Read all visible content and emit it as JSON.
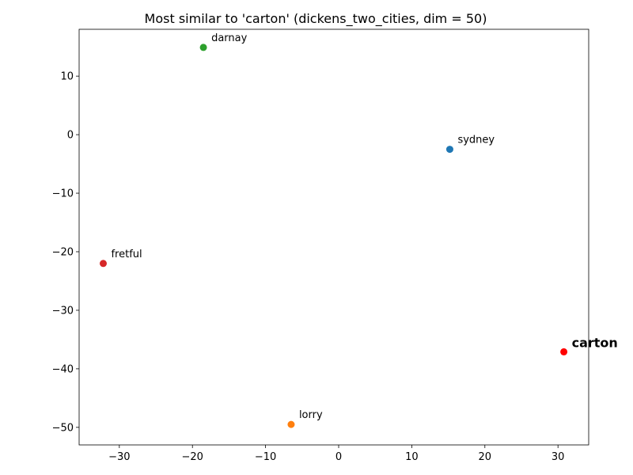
{
  "chart_data": {
    "type": "scatter",
    "title": "Most similar to 'carton' (dickens_two_cities, dim = 50)",
    "xlabel": "",
    "ylabel": "",
    "xlim": [
      -35.5,
      34.2
    ],
    "ylim": [
      -53,
      18
    ],
    "xticks": [
      -30,
      -20,
      -10,
      0,
      10,
      20,
      30
    ],
    "yticks": [
      10,
      0,
      -10,
      -20,
      -30,
      -40,
      -50
    ],
    "xtick_labels": [
      "−30",
      "−20",
      "−10",
      "0",
      "10",
      "20",
      "30"
    ],
    "ytick_labels": [
      "10",
      "0",
      "−10",
      "−20",
      "−30",
      "−40",
      "−50"
    ],
    "grid": false,
    "points": [
      {
        "label": "sydney",
        "x": 15.2,
        "y": -2.5,
        "color": "#1f77b4",
        "highlight": false
      },
      {
        "label": "lorry",
        "x": -6.5,
        "y": -49.5,
        "color": "#ff7f0e",
        "highlight": false
      },
      {
        "label": "darnay",
        "x": -18.5,
        "y": 14.9,
        "color": "#2ca02c",
        "highlight": false
      },
      {
        "label": "fretful",
        "x": -32.2,
        "y": -22.0,
        "color": "#d62728",
        "highlight": false
      },
      {
        "label": "carton",
        "x": 30.8,
        "y": -37.1,
        "color": "#ff0000",
        "highlight": true
      }
    ]
  }
}
